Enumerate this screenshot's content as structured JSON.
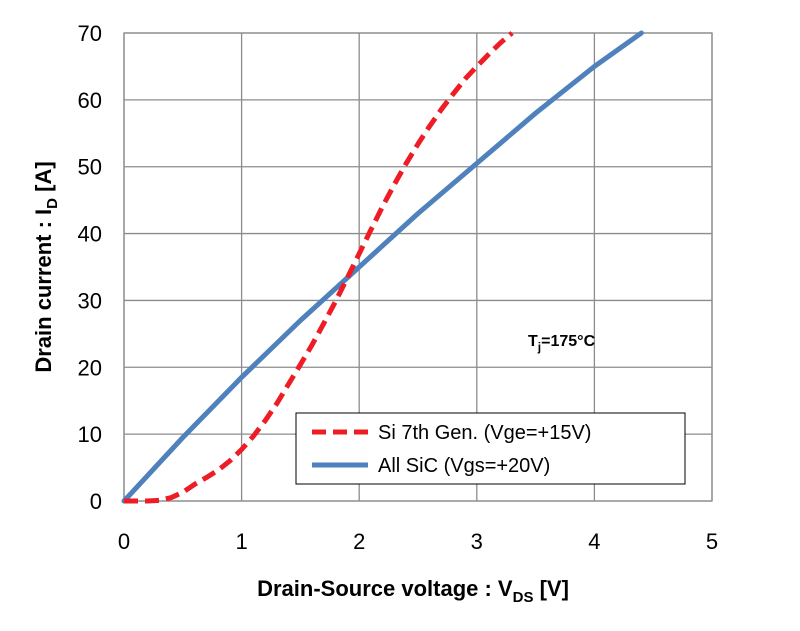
{
  "chart_data": {
    "type": "line",
    "title": "",
    "xlabel": {
      "main": "Drain-Source voltage : V",
      "sub": "DS",
      "unit": " [V]"
    },
    "ylabel": {
      "main": "Drain current : I",
      "sub": "D",
      "unit": " [A]"
    },
    "xlim": [
      0,
      5
    ],
    "ylim": [
      0,
      70
    ],
    "xticks": [
      0,
      1,
      2,
      3,
      4,
      5
    ],
    "yticks": [
      0,
      10,
      20,
      30,
      40,
      50,
      60,
      70
    ],
    "grid": true,
    "legend_position": "bottom-right",
    "annotation": {
      "main": "T",
      "sub": "j",
      "rest": "=175°C"
    },
    "series": [
      {
        "name": "Si 7th Gen. (Vge=+15V)",
        "color": "#ee1c24",
        "style": "dashed",
        "x": [
          0,
          0.1,
          0.2,
          0.3,
          0.4,
          0.5,
          0.6,
          0.7,
          0.8,
          0.9,
          1.0,
          1.1,
          1.2,
          1.3,
          1.4,
          1.5,
          1.6,
          1.7,
          1.8,
          1.9,
          2.0,
          2.1,
          2.2,
          2.3,
          2.4,
          2.5,
          2.6,
          2.7,
          2.8,
          2.9,
          3.0,
          3.1,
          3.2,
          3.3
        ],
        "y": [
          0,
          0,
          0,
          0.1,
          0.5,
          1.3,
          2.5,
          3.5,
          4.6,
          6.0,
          7.7,
          9.7,
          12.0,
          14.6,
          17.5,
          20.4,
          23.4,
          26.6,
          29.9,
          33.4,
          37.0,
          40.6,
          44.1,
          47.4,
          50.5,
          53.4,
          56.1,
          58.6,
          60.9,
          63.1,
          65.0,
          66.8,
          68.5,
          70.0
        ]
      },
      {
        "name": "All SiC (Vgs=+20V)",
        "color": "#4f81bd",
        "style": "solid",
        "x": [
          0,
          0.5,
          1.0,
          1.5,
          2.0,
          2.5,
          3.0,
          3.5,
          4.0,
          4.4
        ],
        "y": [
          0,
          9.5,
          18.5,
          27.0,
          35.0,
          43.0,
          50.5,
          58.0,
          65.0,
          70.0
        ]
      }
    ]
  }
}
